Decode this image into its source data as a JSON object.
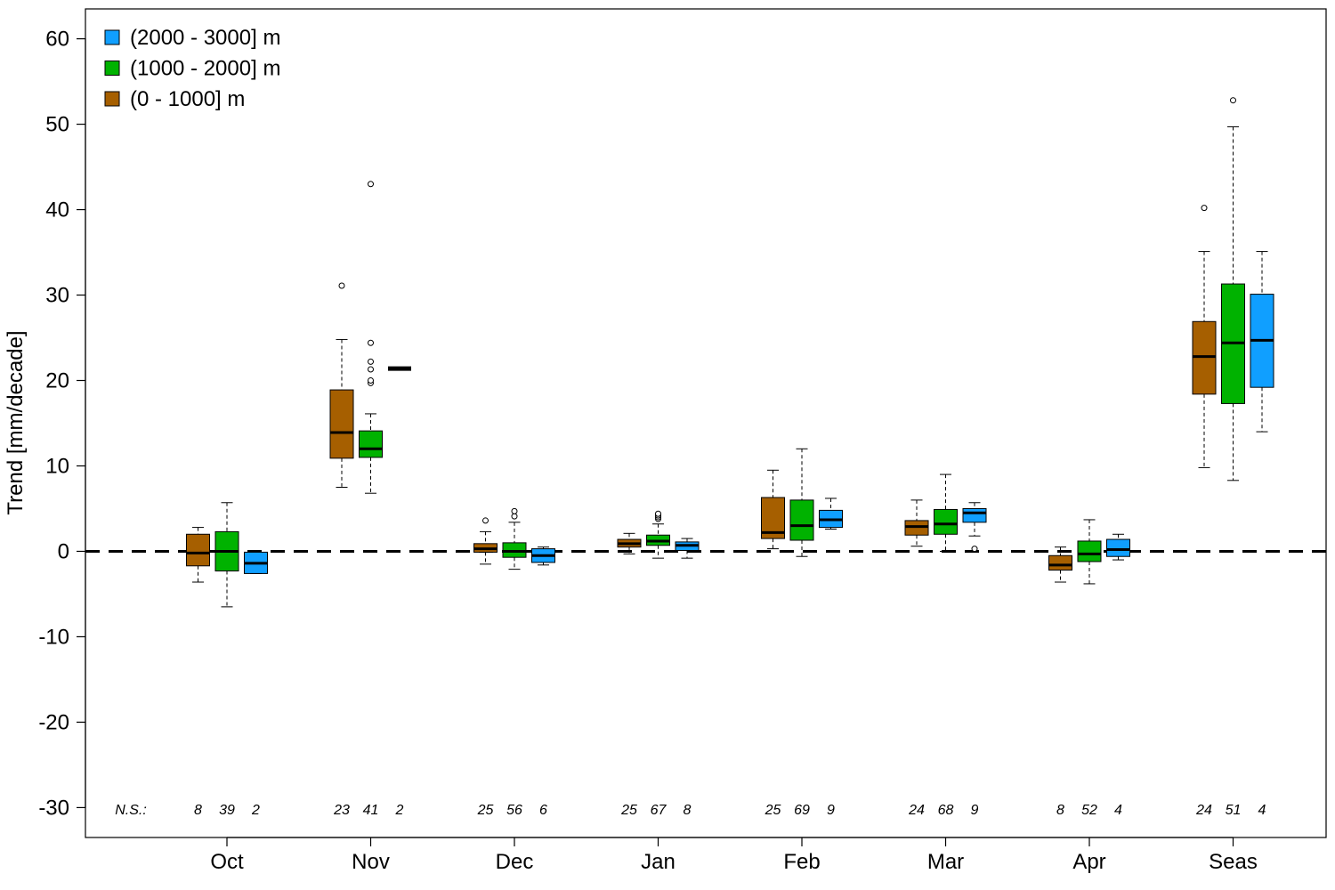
{
  "chart_data": {
    "type": "boxplot",
    "ylabel": "Trend [mm/decade]",
    "ylim": [
      -33.5,
      63.5
    ],
    "yticks": [
      -30,
      -20,
      -10,
      0,
      10,
      20,
      30,
      40,
      50,
      60
    ],
    "categories": [
      "Oct",
      "Nov",
      "Dec",
      "Jan",
      "Feb",
      "Mar",
      "Apr",
      "Seas"
    ],
    "reference_line": 0,
    "legend_position": "top-left",
    "ns_label": "N.S.:",
    "series": [
      {
        "name": "(0 - 1000] m",
        "color": "#a65f00",
        "boxes": [
          {
            "whisker_low": -3.6,
            "q1": -1.7,
            "median": -0.2,
            "q3": 2.0,
            "whisker_high": 2.8,
            "outliers": []
          },
          {
            "whisker_low": 7.5,
            "q1": 10.9,
            "median": 13.9,
            "q3": 18.9,
            "whisker_high": 24.8,
            "outliers": [
              31.1
            ]
          },
          {
            "whisker_low": -1.5,
            "q1": -0.1,
            "median": 0.3,
            "q3": 0.9,
            "whisker_high": 2.3,
            "outliers": [
              3.6
            ]
          },
          {
            "whisker_low": -0.3,
            "q1": 0.5,
            "median": 0.9,
            "q3": 1.4,
            "whisker_high": 2.1,
            "outliers": []
          },
          {
            "whisker_low": 0.3,
            "q1": 1.5,
            "median": 2.2,
            "q3": 6.3,
            "whisker_high": 9.5,
            "outliers": []
          },
          {
            "whisker_low": 0.6,
            "q1": 1.9,
            "median": 2.9,
            "q3": 3.6,
            "whisker_high": 6.0,
            "outliers": []
          },
          {
            "whisker_low": -3.6,
            "q1": -2.2,
            "median": -1.6,
            "q3": -0.5,
            "whisker_high": 0.5,
            "outliers": []
          },
          {
            "whisker_low": 9.8,
            "q1": 18.4,
            "median": 22.8,
            "q3": 26.9,
            "whisker_high": 35.1,
            "outliers": [
              40.2
            ]
          }
        ],
        "ns_counts": [
          "8",
          "23",
          "25",
          "25",
          "25",
          "24",
          "8",
          "24"
        ]
      },
      {
        "name": "(1000 - 2000] m",
        "color": "#00b200",
        "boxes": [
          {
            "whisker_low": -6.5,
            "q1": -2.3,
            "median": 0.0,
            "q3": 2.3,
            "whisker_high": 5.7,
            "outliers": []
          },
          {
            "whisker_low": 6.8,
            "q1": 11.0,
            "median": 12.0,
            "q3": 14.1,
            "whisker_high": 16.1,
            "outliers": [
              19.7,
              20.0,
              21.3,
              22.2,
              24.4,
              43.0
            ]
          },
          {
            "whisker_low": -2.1,
            "q1": -0.7,
            "median": 0.0,
            "q3": 1.0,
            "whisker_high": 3.4,
            "outliers": [
              4.1,
              4.7
            ]
          },
          {
            "whisker_low": -0.8,
            "q1": 0.7,
            "median": 1.2,
            "q3": 1.9,
            "whisker_high": 3.2,
            "outliers": [
              3.8,
              4.0,
              4.2,
              4.4
            ]
          },
          {
            "whisker_low": -0.6,
            "q1": 1.3,
            "median": 3.0,
            "q3": 6.0,
            "whisker_high": 12.0,
            "outliers": []
          },
          {
            "whisker_low": 0.0,
            "q1": 2.0,
            "median": 3.2,
            "q3": 4.9,
            "whisker_high": 9.0,
            "outliers": []
          },
          {
            "whisker_low": -3.8,
            "q1": -1.2,
            "median": -0.3,
            "q3": 1.2,
            "whisker_high": 3.7,
            "outliers": []
          },
          {
            "whisker_low": 8.3,
            "q1": 17.3,
            "median": 24.4,
            "q3": 31.3,
            "whisker_high": 49.7,
            "outliers": [
              52.8
            ]
          }
        ],
        "ns_counts": [
          "39",
          "41",
          "56",
          "67",
          "69",
          "68",
          "52",
          "51"
        ]
      },
      {
        "name": "(2000 - 3000] m",
        "color": "#109fff",
        "boxes": [
          {
            "whisker_low": -2.6,
            "q1": -2.6,
            "median": -1.4,
            "q3": -0.1,
            "whisker_high": -0.1,
            "outliers": []
          },
          {
            "whisker_low": 21.4,
            "q1": 21.4,
            "median": 21.4,
            "q3": 21.4,
            "whisker_high": 21.4,
            "outliers": []
          },
          {
            "whisker_low": -1.6,
            "q1": -1.3,
            "median": -0.5,
            "q3": 0.3,
            "whisker_high": 0.5,
            "outliers": []
          },
          {
            "whisker_low": -0.8,
            "q1": 0.1,
            "median": 0.7,
            "q3": 1.1,
            "whisker_high": 1.5,
            "outliers": []
          },
          {
            "whisker_low": 2.6,
            "q1": 2.8,
            "median": 3.7,
            "q3": 4.8,
            "whisker_high": 6.2,
            "outliers": []
          },
          {
            "whisker_low": 1.8,
            "q1": 3.4,
            "median": 4.5,
            "q3": 5.0,
            "whisker_high": 5.7,
            "outliers": [
              0.3
            ]
          },
          {
            "whisker_low": -1.0,
            "q1": -0.6,
            "median": 0.2,
            "q3": 1.4,
            "whisker_high": 2.0,
            "outliers": []
          },
          {
            "whisker_low": 14.0,
            "q1": 19.2,
            "median": 24.7,
            "q3": 30.1,
            "whisker_high": 35.1,
            "outliers": []
          }
        ],
        "ns_counts": [
          "2",
          "2",
          "6",
          "8",
          "9",
          "9",
          "4",
          "4"
        ]
      }
    ],
    "legend_order": [
      "(2000 - 3000] m",
      "(1000 - 2000] m",
      "(0 - 1000] m"
    ]
  }
}
